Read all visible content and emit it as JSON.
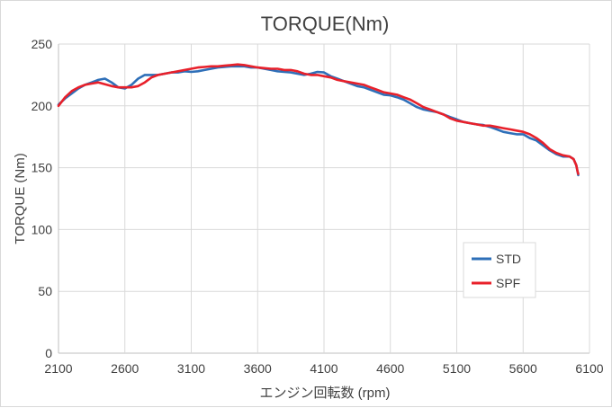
{
  "chart_data": {
    "type": "line",
    "title": "TORQUE(Nm)",
    "xlabel": "エンジン回転数 (rpm)",
    "ylabel": "TORQUE (Nm)",
    "xlim": [
      2100,
      6100
    ],
    "ylim": [
      0,
      250
    ],
    "x_ticks": [
      "2100",
      "2600",
      "3100",
      "3600",
      "4100",
      "4600",
      "5100",
      "5600",
      "6100"
    ],
    "y_ticks": [
      "0",
      "50",
      "100",
      "150",
      "200",
      "250"
    ],
    "grid": true,
    "legend_position": "right",
    "series": [
      {
        "name": "STD",
        "color": "#2e6fb8",
        "points": [
          [
            2100,
            201
          ],
          [
            2150,
            206
          ],
          [
            2200,
            210
          ],
          [
            2250,
            214
          ],
          [
            2300,
            217
          ],
          [
            2350,
            219
          ],
          [
            2400,
            221
          ],
          [
            2450,
            222
          ],
          [
            2500,
            219
          ],
          [
            2550,
            215
          ],
          [
            2600,
            214
          ],
          [
            2650,
            217
          ],
          [
            2700,
            222
          ],
          [
            2750,
            225
          ],
          [
            2800,
            225
          ],
          [
            2850,
            225
          ],
          [
            2900,
            226
          ],
          [
            2950,
            227
          ],
          [
            3000,
            227
          ],
          [
            3050,
            228
          ],
          [
            3100,
            227.5
          ],
          [
            3150,
            228
          ],
          [
            3200,
            229
          ],
          [
            3250,
            230
          ],
          [
            3300,
            231
          ],
          [
            3350,
            231.5
          ],
          [
            3400,
            232
          ],
          [
            3450,
            232
          ],
          [
            3500,
            232
          ],
          [
            3550,
            231
          ],
          [
            3600,
            231
          ],
          [
            3650,
            230
          ],
          [
            3700,
            229
          ],
          [
            3750,
            228
          ],
          [
            3800,
            227.5
          ],
          [
            3850,
            227
          ],
          [
            3900,
            226
          ],
          [
            3950,
            225
          ],
          [
            4000,
            226
          ],
          [
            4050,
            227.5
          ],
          [
            4100,
            227
          ],
          [
            4150,
            224
          ],
          [
            4200,
            222
          ],
          [
            4250,
            220
          ],
          [
            4300,
            218
          ],
          [
            4350,
            216
          ],
          [
            4400,
            215
          ],
          [
            4450,
            213
          ],
          [
            4500,
            211
          ],
          [
            4550,
            209
          ],
          [
            4600,
            208.5
          ],
          [
            4650,
            207
          ],
          [
            4700,
            205
          ],
          [
            4750,
            202
          ],
          [
            4800,
            199
          ],
          [
            4850,
            197
          ],
          [
            4900,
            196
          ],
          [
            4950,
            195
          ],
          [
            5000,
            193
          ],
          [
            5050,
            191
          ],
          [
            5100,
            189
          ],
          [
            5150,
            187
          ],
          [
            5200,
            186
          ],
          [
            5250,
            185
          ],
          [
            5300,
            184.5
          ],
          [
            5350,
            183
          ],
          [
            5400,
            181
          ],
          [
            5450,
            179
          ],
          [
            5500,
            178
          ],
          [
            5550,
            177
          ],
          [
            5600,
            177
          ],
          [
            5650,
            174
          ],
          [
            5700,
            172
          ],
          [
            5750,
            168
          ],
          [
            5800,
            164
          ],
          [
            5850,
            161
          ],
          [
            5900,
            159
          ],
          [
            5950,
            159
          ],
          [
            5980,
            157
          ],
          [
            6000,
            152
          ],
          [
            6010,
            147
          ],
          [
            6015,
            144
          ]
        ]
      },
      {
        "name": "SPF",
        "color": "#e8202a",
        "points": [
          [
            2100,
            200
          ],
          [
            2150,
            207
          ],
          [
            2200,
            212
          ],
          [
            2250,
            215
          ],
          [
            2300,
            217
          ],
          [
            2350,
            218
          ],
          [
            2400,
            219
          ],
          [
            2450,
            217.5
          ],
          [
            2500,
            216
          ],
          [
            2550,
            215
          ],
          [
            2600,
            215
          ],
          [
            2650,
            215
          ],
          [
            2700,
            216
          ],
          [
            2750,
            219
          ],
          [
            2800,
            223
          ],
          [
            2850,
            225
          ],
          [
            2900,
            226
          ],
          [
            2950,
            227
          ],
          [
            3000,
            228
          ],
          [
            3050,
            229
          ],
          [
            3100,
            230
          ],
          [
            3150,
            231
          ],
          [
            3200,
            231.5
          ],
          [
            3250,
            232
          ],
          [
            3300,
            232
          ],
          [
            3350,
            232.5
          ],
          [
            3400,
            233
          ],
          [
            3450,
            233.5
          ],
          [
            3500,
            233
          ],
          [
            3550,
            232
          ],
          [
            3600,
            231
          ],
          [
            3650,
            230.5
          ],
          [
            3700,
            230
          ],
          [
            3750,
            230
          ],
          [
            3800,
            229
          ],
          [
            3850,
            229
          ],
          [
            3900,
            228
          ],
          [
            3950,
            226
          ],
          [
            4000,
            225
          ],
          [
            4050,
            225
          ],
          [
            4100,
            224
          ],
          [
            4150,
            223
          ],
          [
            4200,
            221
          ],
          [
            4250,
            220
          ],
          [
            4300,
            219
          ],
          [
            4350,
            218
          ],
          [
            4400,
            217
          ],
          [
            4450,
            215
          ],
          [
            4500,
            213
          ],
          [
            4550,
            211
          ],
          [
            4600,
            210
          ],
          [
            4650,
            209
          ],
          [
            4700,
            207
          ],
          [
            4750,
            205
          ],
          [
            4800,
            202
          ],
          [
            4850,
            199
          ],
          [
            4900,
            197
          ],
          [
            4950,
            195
          ],
          [
            5000,
            193
          ],
          [
            5050,
            190
          ],
          [
            5100,
            188
          ],
          [
            5150,
            187
          ],
          [
            5200,
            186
          ],
          [
            5250,
            185
          ],
          [
            5300,
            184
          ],
          [
            5350,
            184
          ],
          [
            5400,
            183
          ],
          [
            5450,
            182
          ],
          [
            5500,
            181
          ],
          [
            5550,
            180
          ],
          [
            5600,
            179
          ],
          [
            5650,
            177
          ],
          [
            5700,
            174
          ],
          [
            5750,
            170
          ],
          [
            5800,
            165
          ],
          [
            5850,
            162
          ],
          [
            5900,
            160
          ],
          [
            5950,
            159
          ],
          [
            5980,
            157
          ],
          [
            6000,
            152
          ],
          [
            6010,
            147
          ],
          [
            6015,
            145
          ]
        ]
      }
    ]
  }
}
